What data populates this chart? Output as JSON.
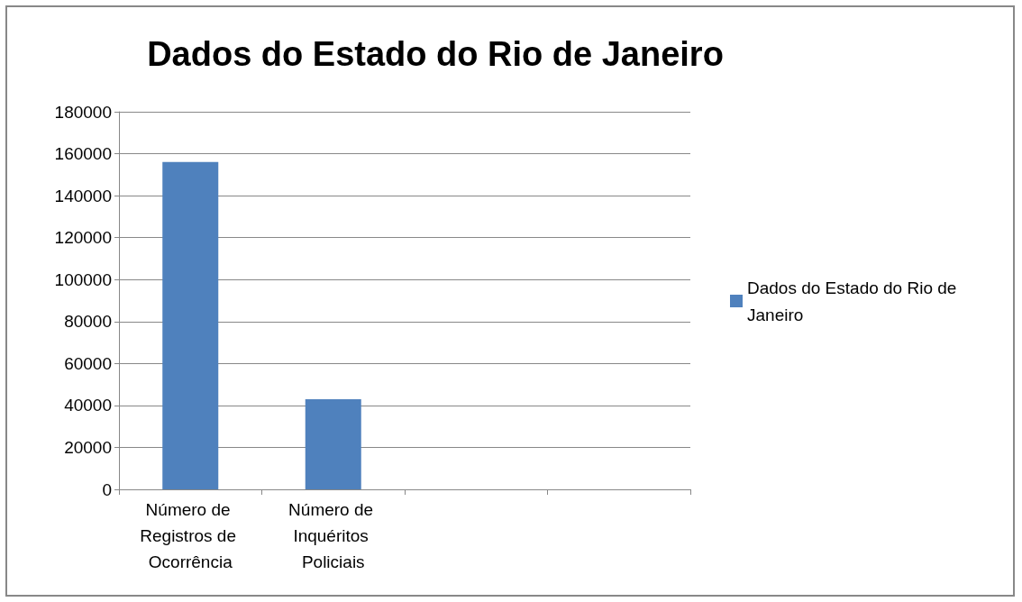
{
  "chart_data": {
    "type": "bar",
    "title": "Dados do Estado do Rio de Janeiro",
    "categories": [
      "Número de Registros de Ocorrência",
      "Número de Inquéritos Policiais",
      null,
      null
    ],
    "series": [
      {
        "name": "Dados do Estado do Rio de Janeiro",
        "color": "#4f81bd",
        "values": [
          156000,
          43000,
          null,
          null
        ]
      }
    ],
    "ylim": [
      0,
      180000
    ],
    "yticks": [
      0,
      20000,
      40000,
      60000,
      80000,
      100000,
      120000,
      140000,
      160000,
      180000
    ],
    "grid": "y",
    "legend": "right"
  }
}
